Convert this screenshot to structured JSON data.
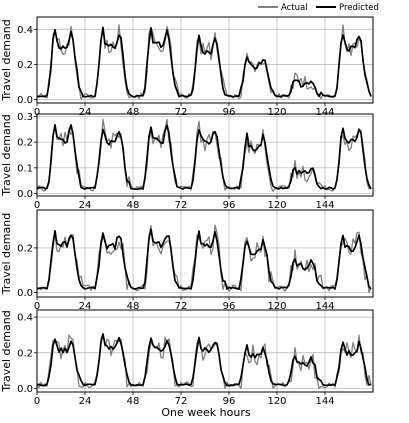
{
  "legend": [
    {
      "name": "Actual",
      "color": "#808080"
    },
    {
      "name": "Predicted",
      "color": "#000000"
    }
  ],
  "chart_data": [
    {
      "type": "line",
      "ylabel": "Travel demand",
      "xlim": [
        0,
        168
      ],
      "ylim": [
        -0.02,
        0.47
      ],
      "xticks": [
        0,
        24,
        48,
        72,
        96,
        120,
        144
      ],
      "yticks": [
        0.0,
        0.2,
        0.4
      ],
      "ytick_labels": [
        "0.0",
        "0.2",
        "0.4"
      ],
      "grid": true,
      "profile": {
        "peak": [
          0.4,
          0.4,
          0.41,
          0.36,
          0.25,
          0.11,
          0.38
        ]
      },
      "series": [
        {
          "name": "Actual",
          "color": "#808080",
          "noise": 0.05
        },
        {
          "name": "Predicted",
          "color": "#000000",
          "noise": 0.018
        }
      ]
    },
    {
      "type": "line",
      "ylabel": "Travel demand",
      "xlim": [
        0,
        168
      ],
      "ylim": [
        -0.01,
        0.31
      ],
      "xticks": [
        0,
        24,
        48,
        72,
        96,
        120,
        144
      ],
      "yticks": [
        0.0,
        0.1,
        0.2,
        0.3
      ],
      "ytick_labels": [
        "0.0",
        "0.1",
        "0.2",
        "0.3"
      ],
      "grid": true,
      "profile": {
        "peak": [
          0.27,
          0.26,
          0.27,
          0.26,
          0.23,
          0.1,
          0.26
        ]
      },
      "series": [
        {
          "name": "Actual",
          "color": "#808080",
          "noise": 0.035
        },
        {
          "name": "Predicted",
          "color": "#000000",
          "noise": 0.012
        }
      ]
    },
    {
      "type": "line",
      "ylabel": "Travel demand",
      "xlim": [
        0,
        168
      ],
      "ylim": [
        -0.02,
        0.37
      ],
      "xticks": [
        0,
        24,
        48,
        72,
        96,
        120,
        144
      ],
      "yticks": [
        0.0,
        0.2
      ],
      "ytick_labels": [
        "0.0",
        "0.2"
      ],
      "grid": true,
      "profile": {
        "peak": [
          0.28,
          0.27,
          0.28,
          0.28,
          0.24,
          0.15,
          0.26
        ]
      },
      "series": [
        {
          "name": "Actual",
          "color": "#808080",
          "noise": 0.05
        },
        {
          "name": "Predicted",
          "color": "#000000",
          "noise": 0.015
        }
      ]
    },
    {
      "type": "line",
      "ylabel": "Travel demand",
      "xlim": [
        0,
        168
      ],
      "ylim": [
        -0.02,
        0.44
      ],
      "xticks": [
        0,
        24,
        48,
        72,
        96,
        120,
        144
      ],
      "yticks": [
        0.0,
        0.2,
        0.4
      ],
      "ytick_labels": [
        "0.0",
        "0.2",
        "0.4"
      ],
      "xlabel": "One week hours",
      "grid": true,
      "profile": {
        "peak": [
          0.28,
          0.3,
          0.29,
          0.28,
          0.24,
          0.18,
          0.26
        ]
      },
      "series": [
        {
          "name": "Actual",
          "color": "#808080",
          "noise": 0.06
        },
        {
          "name": "Predicted",
          "color": "#000000",
          "noise": 0.015
        }
      ]
    }
  ]
}
